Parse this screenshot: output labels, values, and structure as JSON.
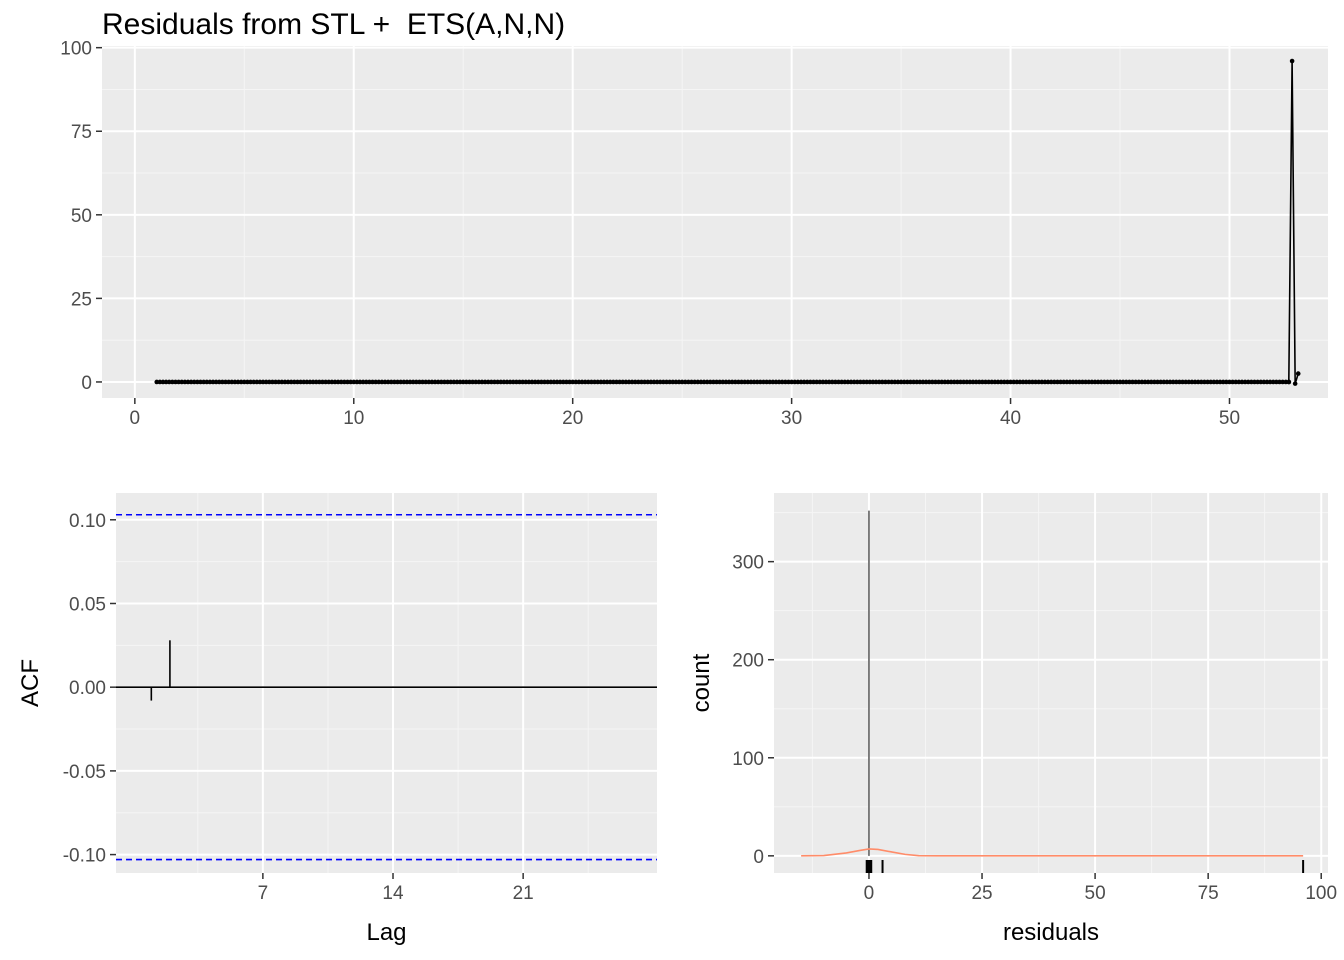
{
  "title": "Residuals from STL +  ETS(A,N,N)",
  "colors": {
    "panel": "#ebebeb",
    "grid_major": "#ffffff",
    "grid_minor": "#f5f5f5",
    "line": "#000000",
    "ci": "#0000ff",
    "density": "#ff8c69"
  },
  "chart_data": [
    {
      "type": "line",
      "title": "Residuals from STL +  ETS(A,N,N)",
      "xlabel": "",
      "ylabel": "",
      "xlim": [
        -1.5,
        54.5
      ],
      "ylim": [
        -4.8,
        100.5
      ],
      "xticks": [
        "0",
        "10",
        "20",
        "30",
        "40",
        "50"
      ],
      "xtick_values": [
        0,
        10,
        20,
        30,
        40,
        50
      ],
      "yticks": [
        "0",
        "25",
        "50",
        "75",
        "100"
      ],
      "ytick_values": [
        0,
        25,
        50,
        75,
        100
      ],
      "grid": true,
      "series": [
        {
          "x_start": 1.0,
          "x_step": 0.142857,
          "x_end": 52.8,
          "baseline_value": 0,
          "tail": [
            [
              52.71,
              0
            ],
            [
              52.86,
              96
            ],
            [
              53.0,
              -0.5
            ],
            [
              53.14,
              2.5
            ]
          ]
        }
      ]
    },
    {
      "type": "bar",
      "title": "",
      "xlabel": "Lag",
      "ylabel": "ACF",
      "xlim": [
        -0.9,
        28.2
      ],
      "ylim": [
        -0.111,
        0.116
      ],
      "xticks": [
        "7",
        "14",
        "21"
      ],
      "xtick_values": [
        7,
        14,
        21
      ],
      "yticks": [
        "-0.10",
        "-0.05",
        "0.00",
        "0.05",
        "0.10"
      ],
      "ytick_values": [
        -0.1,
        -0.05,
        0.0,
        0.05,
        0.1
      ],
      "ci": 0.103,
      "lags": [
        1,
        2
      ],
      "values": [
        -0.008,
        0.028
      ],
      "grid": true
    },
    {
      "type": "histogram",
      "title": "",
      "xlabel": "residuals",
      "ylabel": "count",
      "xlim": [
        -21,
        101.5
      ],
      "ylim": [
        -17.5,
        370
      ],
      "xticks": [
        "0",
        "25",
        "50",
        "75",
        "100"
      ],
      "xtick_values": [
        0,
        25,
        50,
        75,
        100
      ],
      "yticks": [
        "0",
        "100",
        "200",
        "300"
      ],
      "ytick_values": [
        0,
        100,
        200,
        300
      ],
      "bins": [
        {
          "x": 0,
          "count": 352
        }
      ],
      "density_curve": [
        [
          -15,
          0
        ],
        [
          -10,
          0.3
        ],
        [
          -5,
          3
        ],
        [
          -2,
          5.5
        ],
        [
          0,
          7
        ],
        [
          2,
          6.5
        ],
        [
          5,
          4
        ],
        [
          8,
          1.5
        ],
        [
          11,
          0.2
        ],
        [
          15,
          0
        ],
        [
          96,
          0
        ]
      ],
      "rug": [
        -0.5,
        -0.3,
        -0.1,
        0,
        0.1,
        0.3,
        0.5,
        3.0,
        96.0
      ],
      "grid": true
    }
  ]
}
